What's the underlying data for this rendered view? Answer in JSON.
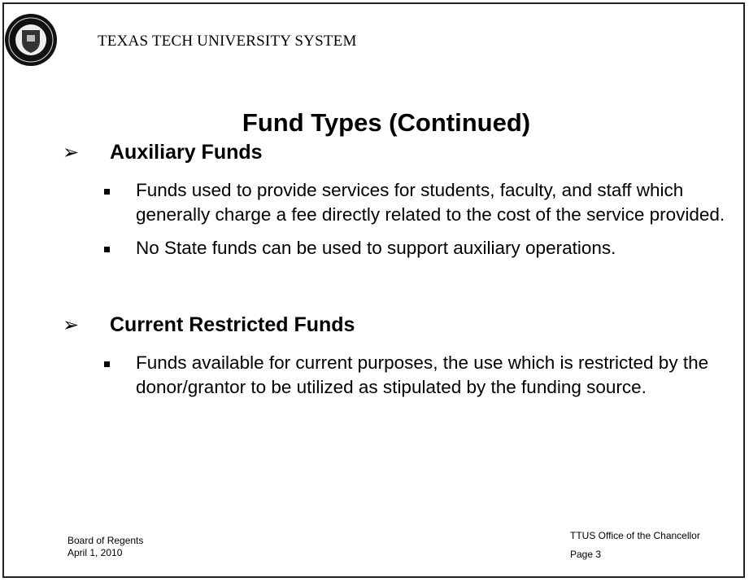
{
  "header": {
    "organization": "TEXAS TECH UNIVERSITY SYSTEM"
  },
  "title": "Fund Types (Continued)",
  "sections": [
    {
      "heading": "Auxiliary Funds",
      "bullets": [
        "Funds used to provide services for students, faculty, and staff which generally charge a fee directly related to the cost of the service provided.",
        "No State funds can be used to support auxiliary operations."
      ]
    },
    {
      "heading": "Current Restricted Funds",
      "bullets": [
        "Funds available for current purposes, the use which is restricted by the donor/grantor to be utilized as stipulated by the funding source."
      ]
    }
  ],
  "footer": {
    "left": [
      "Board of Regents",
      "April 1, 2010"
    ],
    "right": [
      "TTUS Office of the Chancellor",
      "Page 3"
    ]
  }
}
